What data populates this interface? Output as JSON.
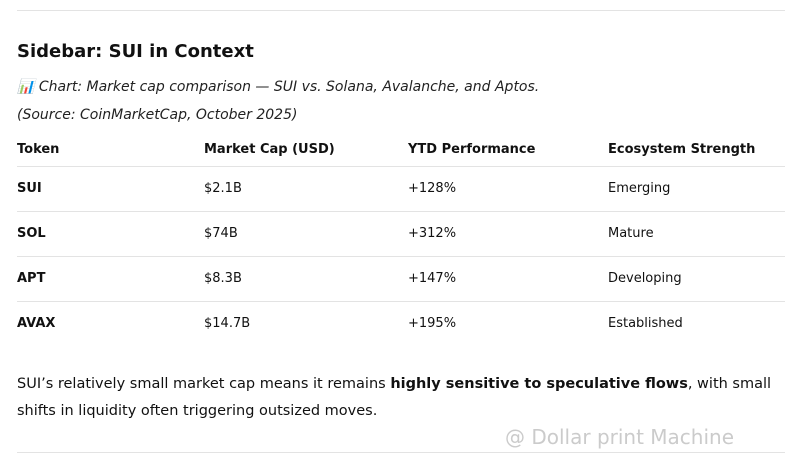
{
  "document": {
    "title": "Sidebar: SUI in Context",
    "caption": "📊 Chart: Market cap comparison — SUI vs. Solana, Avalanche, and Aptos.",
    "source": "(Source: CoinMarketCap, October 2025)",
    "table": {
      "header": [
        "Token",
        "Market Cap (USD)",
        "YTD Performance",
        "Ecosystem Strength"
      ],
      "rows": [
        [
          "SUI",
          "$2.1B",
          "+128%",
          "Emerging"
        ],
        [
          "SOL",
          "$74B",
          "+312%",
          "Mature"
        ],
        [
          "APT",
          "$8.3B",
          "+147%",
          "Developing"
        ],
        [
          "AVAX",
          "$14.7B",
          "+195%",
          "Established"
        ]
      ]
    },
    "paragraph": [
      "SUI’s relatively small market cap means it remains ",
      "highly sensitive to speculative flows",
      ", with small shifts in liquidity often triggering outsized moves."
    ],
    "watermark": "@ Dollar print Machine"
  }
}
